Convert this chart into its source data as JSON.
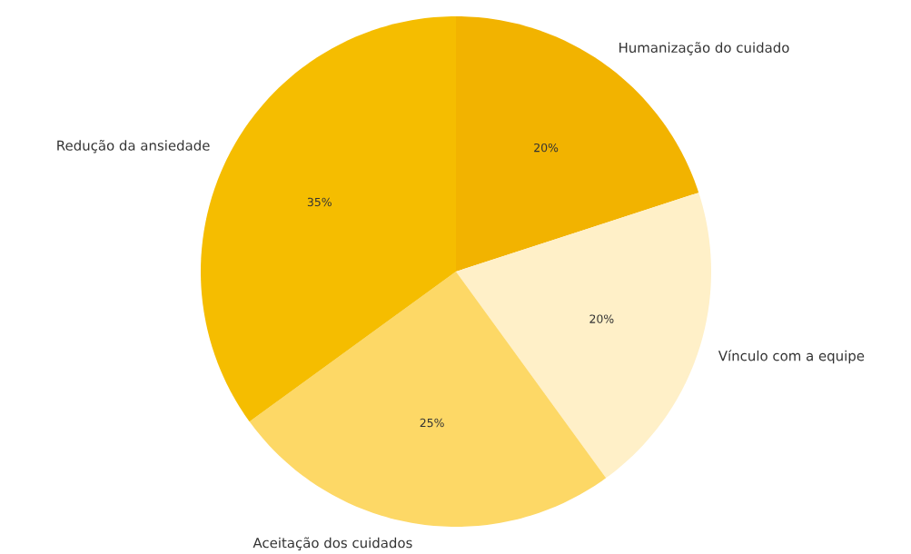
{
  "chart_data": {
    "type": "pie",
    "categories": [
      "Humanização do cuidado",
      "Vínculo com a equipe",
      "Aceitação dos cuidados",
      "Redução da ansiedade"
    ],
    "values": [
      20,
      20,
      25,
      35
    ],
    "colors": [
      "#f2b300",
      "#fff0c8",
      "#fdd866",
      "#f5bd00"
    ],
    "value_labels": [
      "20%",
      "20%",
      "25%",
      "35%"
    ]
  }
}
